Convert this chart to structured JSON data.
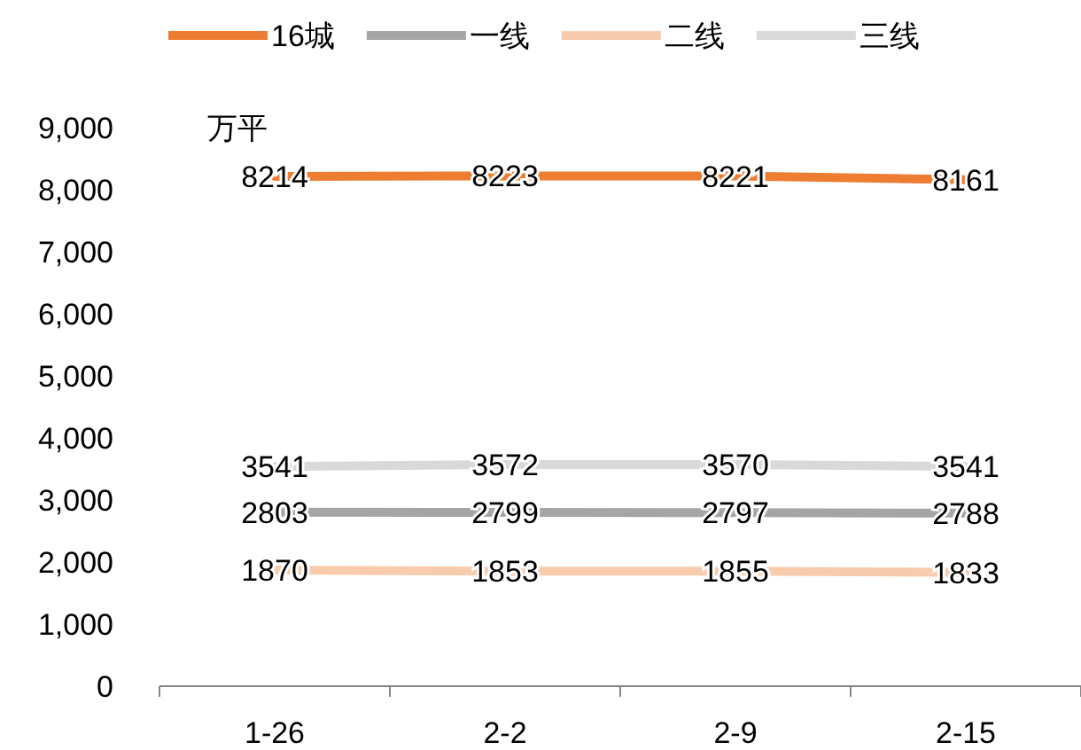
{
  "chart_data": {
    "type": "line",
    "ylabel": "万平",
    "categories": [
      "1-26",
      "2-2",
      "2-9",
      "2-15"
    ],
    "series": [
      {
        "name": "16城",
        "color": "#ed7d31",
        "values": [
          8214,
          8223,
          8221,
          8161
        ]
      },
      {
        "name": "一线",
        "color": "#a5a5a5",
        "values": [
          2803,
          2799,
          2797,
          2788
        ]
      },
      {
        "name": "二线",
        "color": "#f8cbad",
        "values": [
          1870,
          1853,
          1855,
          1833
        ]
      },
      {
        "name": "三线",
        "color": "#d9d9d9",
        "values": [
          3541,
          3572,
          3570,
          3541
        ]
      }
    ],
    "ylim": [
      0,
      9000
    ],
    "yticks": [
      0,
      {
        "value": 1000,
        "label": "1,000"
      },
      {
        "value": 2000,
        "label": "2,000"
      },
      {
        "value": 3000,
        "label": "3,000"
      },
      {
        "value": 4000,
        "label": "4,000"
      },
      {
        "value": 5000,
        "label": "5,000"
      },
      {
        "value": 6000,
        "label": "6,000"
      },
      {
        "value": 7000,
        "label": "7,000"
      },
      {
        "value": 8000,
        "label": "8,000"
      },
      {
        "value": 9000,
        "label": "9,000"
      }
    ],
    "data_labels": true,
    "legend": "top",
    "grid": false,
    "line_style": "solid"
  }
}
